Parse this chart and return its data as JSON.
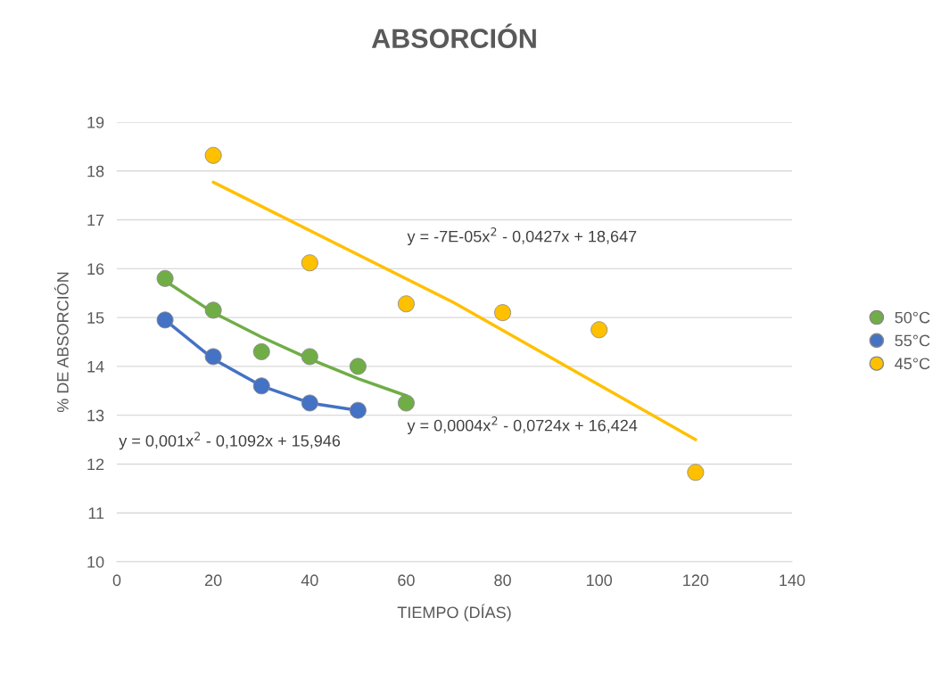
{
  "chart_data": {
    "type": "scatter",
    "title": "ABSORCIÓN",
    "xlabel": "TIEMPO (DÍAS)",
    "ylabel": "% DE ABSORCIÓN",
    "xlim": [
      0,
      140
    ],
    "xticks": [
      0,
      20,
      40,
      60,
      80,
      100,
      120,
      140
    ],
    "ylim": [
      10,
      19
    ],
    "yticks": [
      10,
      11,
      12,
      13,
      14,
      15,
      16,
      17,
      18,
      19
    ],
    "grid": "y",
    "legend": "right",
    "marker": "circle",
    "series": [
      {
        "name": "50°C",
        "color": "#70ad47",
        "x": [
          10,
          20,
          30,
          40,
          50,
          60
        ],
        "values": [
          15.8,
          15.15,
          14.3,
          14.2,
          14.0,
          13.25
        ]
      },
      {
        "name": "55°C",
        "color": "#4472c4",
        "x": [
          10,
          20,
          30,
          40,
          50
        ],
        "values": [
          14.95,
          14.2,
          13.6,
          13.25,
          13.1
        ]
      },
      {
        "name": "45°C",
        "color": "#ffc000",
        "x": [
          20,
          40,
          60,
          80,
          100,
          120
        ],
        "values": [
          18.32,
          16.12,
          15.28,
          15.1,
          14.75,
          11.83
        ]
      },
      {
        "type": "line",
        "color": "#70ad47",
        "x": [
          10,
          20,
          30,
          40,
          50,
          60
        ],
        "values": [
          15.75,
          15.1,
          14.6,
          14.15,
          13.75,
          13.4
        ],
        "marker": "none",
        "line_style": "solid"
      },
      {
        "type": "line",
        "color": "#4472c4",
        "x": [
          10,
          20,
          30,
          40,
          50
        ],
        "values": [
          14.95,
          14.15,
          13.6,
          13.25,
          13.1
        ],
        "marker": "none",
        "line_style": "solid"
      },
      {
        "type": "line",
        "color": "#ffc000",
        "x": [
          20,
          70,
          120
        ],
        "values": [
          17.77,
          15.3,
          12.5
        ],
        "marker": "none",
        "line_style": "solid"
      }
    ],
    "annotations": [
      "y = -7E-05x$^{2}$ - 0,0427x + 18,647",
      "y = 0,0004x$^{2}$ - 0,0724x + 16,424",
      "y = 0,001x$^{2}$ - 0,1092x + 15,946"
    ]
  }
}
